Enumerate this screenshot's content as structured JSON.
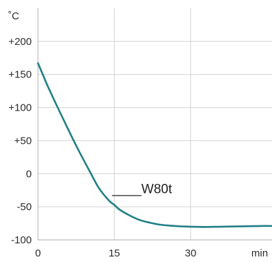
{
  "chart_data": {
    "type": "line",
    "y_unit_label": "˚C",
    "x_unit_label": "min",
    "x_ticks": [
      0,
      15,
      30
    ],
    "x_tick_labels": [
      "0",
      "15",
      "30"
    ],
    "y_ticks": [
      200,
      150,
      100,
      50,
      0,
      -50,
      -100
    ],
    "y_tick_labels": [
      "+200",
      "+150",
      "+100",
      "+50",
      "0",
      "-50",
      "-100"
    ],
    "xlim": [
      0,
      46
    ],
    "ylim": [
      -100,
      250
    ],
    "grid": true,
    "line_color": "#1f7f86",
    "series": [
      {
        "name": "W80t",
        "x": [
          0,
          1,
          2,
          4,
          6,
          8,
          10,
          12,
          14,
          15,
          16,
          18,
          20,
          22,
          24,
          26,
          28,
          30,
          33,
          36,
          40,
          44,
          46
        ],
        "y": [
          167,
          149,
          131,
          98,
          66,
          35,
          6,
          -22,
          -41,
          -47,
          -54,
          -63,
          -70,
          -74,
          -77,
          -78.5,
          -79.5,
          -80,
          -80.5,
          -80,
          -79.5,
          -79,
          -79
        ]
      }
    ],
    "annotation": {
      "text": "____W80t",
      "x": 15,
      "y": -22
    }
  }
}
